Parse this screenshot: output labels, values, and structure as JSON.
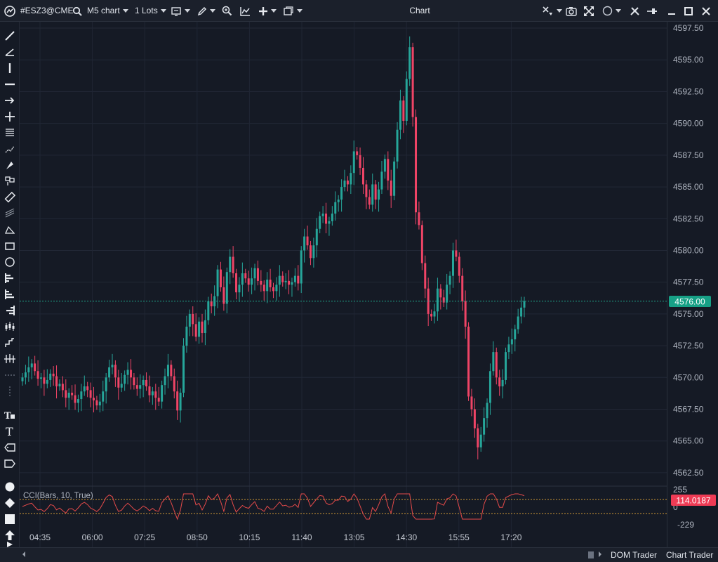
{
  "toolbar": {
    "symbol": "#ESZ3@CME",
    "timeframe": "M5 chart",
    "lots": "1 Lots",
    "title": "Chart"
  },
  "price_axis": {
    "ticks": [
      "4597.50",
      "4595.00",
      "4592.50",
      "4590.00",
      "4587.50",
      "4585.00",
      "4582.50",
      "4580.00",
      "4577.50",
      "4575.00",
      "4572.50",
      "4570.00",
      "4567.50",
      "4565.00",
      "4562.50"
    ],
    "current_price": "4576.00"
  },
  "time_axis": {
    "ticks": [
      "04:35",
      "06:00",
      "07:25",
      "08:50",
      "10:15",
      "11:40",
      "13:05",
      "14:30",
      "15:55",
      "17:20"
    ]
  },
  "indicator": {
    "label": "CCI(Bars, 10, True)",
    "upper": "255",
    "zero": "0",
    "lower": "-229",
    "current_value": "114.0187"
  },
  "bottom": {
    "dom_trader": "DOM Trader",
    "chart_trader": "Chart Trader"
  },
  "chart_data": {
    "type": "candlestick",
    "symbol": "#ESZ3@CME",
    "timeframe": "M5",
    "y_range": [
      4561.5,
      4598.0
    ],
    "last_price": 4576.0,
    "bull_color": "#26a69a",
    "bear_color": "#ef4466",
    "closes": [
      4570.0,
      4570.4,
      4570.8,
      4571.1,
      4570.5,
      4569.9,
      4570.0,
      4569.5,
      4569.8,
      4570.3,
      4570.1,
      4569.3,
      4569.5,
      4569.0,
      4568.4,
      4568.8,
      4568.6,
      4568.0,
      4568.3,
      4568.9,
      4569.3,
      4569.0,
      4568.4,
      4568.2,
      4567.8,
      4568.1,
      4568.9,
      4570.0,
      4570.8,
      4571.0,
      4570.0,
      4569.2,
      4569.5,
      4570.2,
      4570.6,
      4570.0,
      4569.4,
      4569.1,
      4569.4,
      4569.8,
      4569.3,
      4568.6,
      4568.9,
      4568.4,
      4568.1,
      4569.4,
      4570.1,
      4571.0,
      4570.1,
      4568.9,
      4567.4,
      4568.8,
      4572.5,
      4574.0,
      4575.0,
      4574.2,
      4573.2,
      4574.4,
      4573.5,
      4574.5,
      4576.0,
      4575.6,
      4576.4,
      4578.5,
      4577.1,
      4575.8,
      4578.3,
      4579.5,
      4578.2,
      4576.7,
      4577.3,
      4578.2,
      4577.8,
      4577.3,
      4577.8,
      4578.6,
      4577.6,
      4577.3,
      4576.8,
      4577.7,
      4577.1,
      4576.8,
      4577.3,
      4578.0,
      4577.5,
      4577.6,
      4577.3,
      4577.5,
      4578.0,
      4577.4,
      4580.0,
      4581.1,
      4580.4,
      4579.4,
      4580.4,
      4581.7,
      4582.7,
      4582.9,
      4582.1,
      4582.3,
      4582.9,
      4583.8,
      4584.0,
      4585.0,
      4585.5,
      4585.2,
      4586.1,
      4587.8,
      4587.5,
      4586.5,
      4585.2,
      4584.2,
      4583.6,
      4585.2,
      4584.0,
      4584.8,
      4586.2,
      4587.2,
      4585.5,
      4584.3,
      4587.0,
      4589.5,
      4591.8,
      4590.2,
      4593.5,
      4596.0,
      4590.5,
      4583.0,
      4582.0,
      4579.0,
      4577.0,
      4575.0,
      4574.8,
      4575.2,
      4577.0,
      4576.3,
      4575.9,
      4577.3,
      4578.0,
      4580.0,
      4579.5,
      4578.0,
      4576.0,
      4574.0,
      4568.5,
      4567.5,
      4566.0,
      4564.5,
      4565.5,
      4566.8,
      4568.0,
      4570.5,
      4572.0,
      4570.0,
      4569.3,
      4569.8,
      4572.0,
      4572.6,
      4573.0,
      4573.8,
      4574.8,
      4575.5,
      4576.0
    ]
  }
}
